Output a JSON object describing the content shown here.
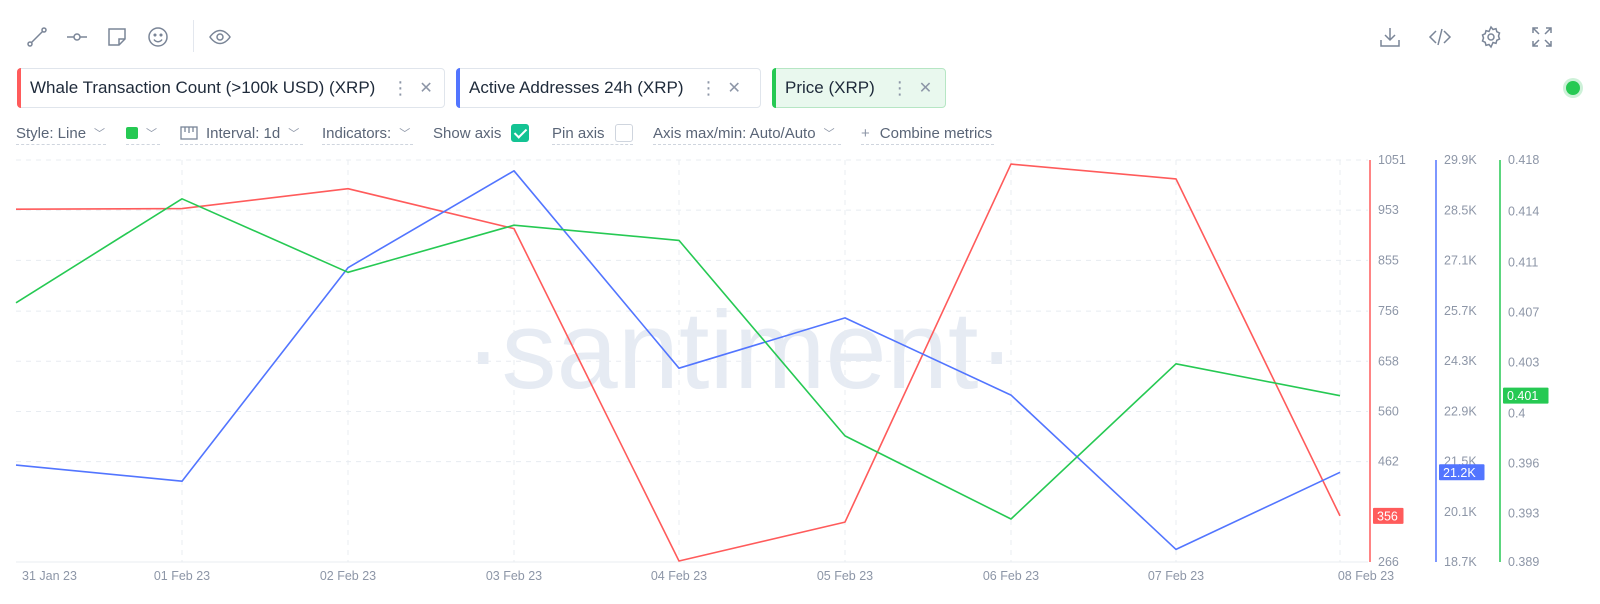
{
  "toolbar": {
    "left_icons": [
      "line-draw-icon",
      "horizontal-line-icon",
      "note-icon",
      "emoji-icon",
      "eye-icon"
    ],
    "right_icons": [
      "download-icon",
      "embed-code-icon",
      "settings-icon",
      "fullscreen-icon"
    ]
  },
  "metrics": [
    {
      "label": "Whale Transaction Count (>100k USD) (XRP)",
      "color": "#ff5b5b",
      "active": false
    },
    {
      "label": "Active Addresses 24h (XRP)",
      "color": "#5275ff",
      "active": false
    },
    {
      "label": "Price (XRP)",
      "color": "#26c953",
      "active": true
    }
  ],
  "controls": {
    "style": "Style: Line",
    "interval": "Interval: 1d",
    "indicators": "Indicators:",
    "show_axis": "Show axis",
    "pin_axis": "Pin axis",
    "axis_maxmin": "Axis max/min: Auto/Auto",
    "combine": "Combine metrics",
    "show_axis_checked": true,
    "pin_axis_checked": false,
    "selected_color": "#26c953"
  },
  "chart_data": {
    "type": "line",
    "watermark": "·santiment·",
    "x": [
      "31 Jan 23",
      "01 Feb 23",
      "02 Feb 23",
      "03 Feb 23",
      "04 Feb 23",
      "05 Feb 23",
      "06 Feb 23",
      "07 Feb 23",
      "08 Feb 23"
    ],
    "series": [
      {
        "name": "Whale Transaction Count (>100k USD) (XRP)",
        "color": "#ff5b5b",
        "values": [
          955,
          956,
          995,
          917,
          268,
          344,
          1043,
          1014,
          356
        ],
        "ylim": [
          266,
          1051
        ],
        "ticks": [
          "1051",
          "953",
          "855",
          "756",
          "658",
          "560",
          "462"
        ],
        "tick_values": [
          1051,
          953,
          855,
          756,
          658,
          560,
          462
        ],
        "ymin_label": "266",
        "last_label": "356"
      },
      {
        "name": "Active Addresses 24h (XRP)",
        "color": "#5275ff",
        "values": [
          21400,
          20950,
          26900,
          29600,
          24100,
          25500,
          23350,
          19050,
          21200
        ],
        "ylim": [
          18700,
          29900
        ],
        "ticks": [
          "29.9K",
          "28.5K",
          "27.1K",
          "25.7K",
          "24.3K",
          "22.9K",
          "21.5K",
          "20.1K"
        ],
        "tick_values": [
          29900,
          28500,
          27100,
          25700,
          24300,
          22900,
          21500,
          20100
        ],
        "ymin_label": "18.7K",
        "last_label": "21.2K"
      },
      {
        "name": "Price (XRP)",
        "color": "#26c953",
        "values": [
          0.4077,
          0.4152,
          0.4099,
          0.4133,
          0.4122,
          0.3981,
          0.3921,
          0.4033,
          0.401
        ],
        "ylim": [
          0.389,
          0.418
        ],
        "ticks": [
          "0.418",
          "0.414",
          "0.411",
          "0.407",
          "0.403",
          "0.4",
          "0.396",
          "0.393"
        ],
        "tick_values": [
          0.418,
          0.4143,
          0.4106,
          0.407,
          0.4034,
          0.3997,
          0.3961,
          0.3925
        ],
        "ymin_label": "0.389",
        "last_label": "0.401"
      }
    ],
    "grid": true
  }
}
